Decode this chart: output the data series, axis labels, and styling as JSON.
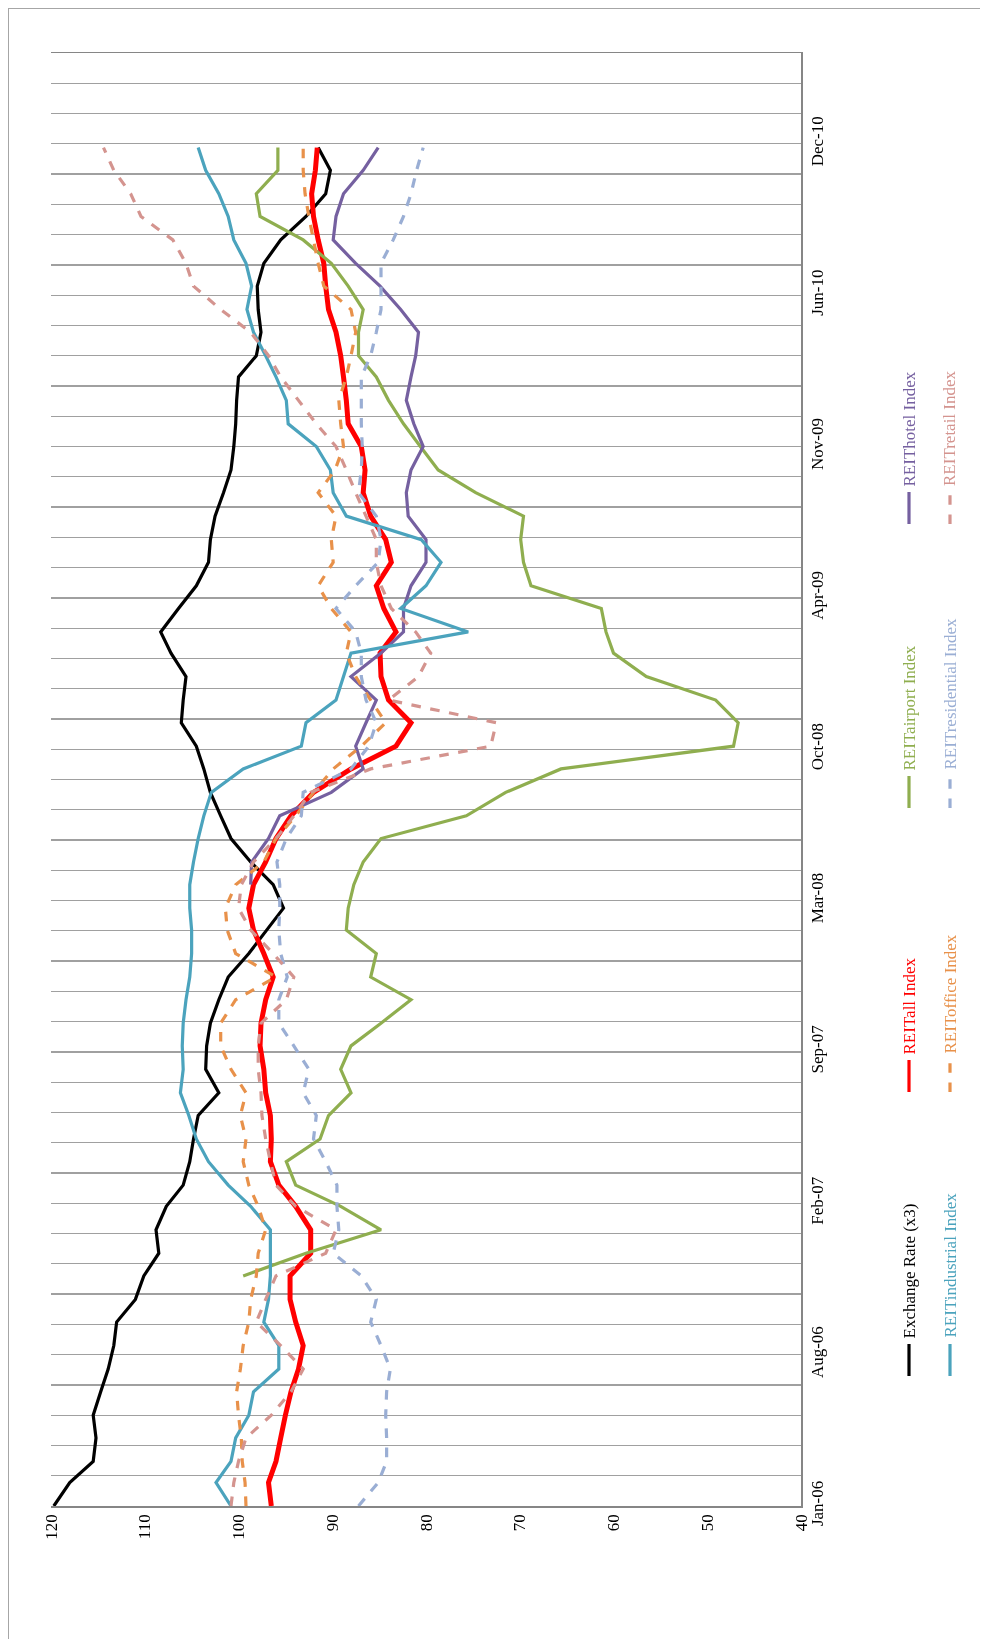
{
  "chart_data": {
    "type": "line",
    "x": [
      "2006-01-15",
      "2006-02-15",
      "2006-03-15",
      "2006-04-15",
      "2006-05-15",
      "2006-06-15",
      "2006-07-15",
      "2006-08-15",
      "2006-09-15",
      "2006-10-15",
      "2006-11-15",
      "2006-12-15",
      "2007-01-15",
      "2007-02-15",
      "2007-03-15",
      "2007-04-15",
      "2007-05-15",
      "2007-06-15",
      "2007-07-15",
      "2007-08-15",
      "2007-09-15",
      "2007-10-15",
      "2007-11-15",
      "2007-12-15",
      "2008-01-15",
      "2008-02-15",
      "2008-03-15",
      "2008-04-15",
      "2008-05-15",
      "2008-06-15",
      "2008-07-15",
      "2008-08-15",
      "2008-09-15",
      "2008-10-15",
      "2008-11-15",
      "2008-12-15",
      "2009-01-15",
      "2009-02-15",
      "2009-03-15",
      "2009-04-15",
      "2009-05-15",
      "2009-06-15",
      "2009-07-15",
      "2009-08-15",
      "2009-09-15",
      "2009-10-15",
      "2009-11-15",
      "2009-12-15",
      "2010-01-15",
      "2010-02-15",
      "2010-03-15",
      "2010-04-15",
      "2010-05-15",
      "2010-06-15",
      "2010-07-15",
      "2010-08-15",
      "2010-09-15",
      "2010-10-15",
      "2010-11-15",
      "2010-12-15"
    ],
    "series": [
      {
        "name": "Exchange Rate (x3)",
        "color": "#000000",
        "line_style": "solid",
        "values": [
          119.7,
          118,
          115.5,
          115.2,
          115.5,
          114.7,
          113.9,
          113.3,
          113,
          111,
          110.1,
          108.5,
          108.8,
          107.7,
          105.9,
          105.2,
          104.8,
          104.3,
          102.1,
          103.5,
          103.4,
          103,
          102.1,
          101.1,
          98.9,
          97,
          95.2,
          96.3,
          98.7,
          100.8,
          101.9,
          103,
          103.7,
          104.5,
          106.1,
          105.9,
          105.6,
          107.2,
          108.3,
          106.4,
          104.5,
          103.2,
          103,
          102.5,
          101.6,
          100.8,
          100.5,
          100.3,
          100.2,
          100,
          98.1,
          97.6,
          97.9,
          98,
          97.3,
          95.5,
          92.8,
          90.7,
          90.2,
          91.5
        ]
      },
      {
        "name": "REITall Index",
        "color": "#ff0000",
        "line_style": "solid",
        "values": [
          96.5,
          96.8,
          96,
          95.5,
          95,
          94.4,
          93.6,
          93.1,
          93.9,
          94.5,
          94.5,
          92.3,
          92.3,
          93.9,
          95.7,
          96.6,
          96.5,
          96.6,
          97.1,
          97.3,
          97.7,
          97.6,
          97.1,
          96.3,
          97.3,
          98.4,
          98.9,
          98.4,
          97.1,
          96,
          94.4,
          92,
          88,
          83.2,
          81.6,
          84,
          84.8,
          84.9,
          83.2,
          84.5,
          85.3,
          83.7,
          84.3,
          85.9,
          86.7,
          86.5,
          86.9,
          88.3,
          88.5,
          88.8,
          89.1,
          89.6,
          90.4,
          90.7,
          90.9,
          91.5,
          92,
          92.2,
          91.8,
          91.6
        ]
      },
      {
        "name": "REITairport Index",
        "color": "#8fae4f",
        "line_style": "solid",
        "values": [
          null,
          null,
          null,
          null,
          null,
          null,
          null,
          null,
          null,
          null,
          99.5,
          92.8,
          84.8,
          89.1,
          93.9,
          94.9,
          91.3,
          90.4,
          88,
          89.1,
          88,
          84.8,
          81.6,
          85.9,
          85.3,
          88.5,
          88.3,
          87.7,
          86.7,
          84.8,
          75.7,
          71.5,
          65.6,
          47.2,
          46.7,
          49.1,
          56.5,
          60,
          60.8,
          61.3,
          68.8,
          69.6,
          69.9,
          69.6,
          74.7,
          78.7,
          80.6,
          82.4,
          84,
          85.3,
          87.2,
          87.2,
          86.7,
          88.3,
          90.1,
          93.1,
          97.7,
          98.1,
          95.8,
          95.8
        ]
      },
      {
        "name": "REIThotel Index",
        "color": "#7560a0",
        "line_style": "solid",
        "values": [
          null,
          null,
          null,
          null,
          null,
          null,
          null,
          null,
          null,
          null,
          null,
          null,
          null,
          null,
          null,
          null,
          null,
          null,
          null,
          null,
          null,
          null,
          null,
          null,
          null,
          null,
          null,
          98.7,
          98.6,
          96.8,
          95.6,
          90.1,
          86.7,
          87.5,
          86.4,
          85.3,
          88,
          84.8,
          82.4,
          82.4,
          81.6,
          80,
          80,
          81.9,
          82.1,
          81.6,
          80.3,
          81.3,
          82.1,
          81.6,
          81.1,
          80.8,
          82.7,
          84.9,
          87.5,
          89.9,
          89.6,
          88.8,
          86.7,
          85.1
        ]
      },
      {
        "name": "REITindustrial Index",
        "color": "#4ba3bd",
        "line_style": "solid",
        "values": [
          100.8,
          102.4,
          100.8,
          100.3,
          98.9,
          98.4,
          95.7,
          95.7,
          97.3,
          96.8,
          96.6,
          96.6,
          96.6,
          98.7,
          101.1,
          103.2,
          104.5,
          105.3,
          106.2,
          105.9,
          106,
          105.9,
          105.6,
          105.2,
          105,
          105,
          105.2,
          105.2,
          104.8,
          104.3,
          103.7,
          102.9,
          99.5,
          93.3,
          92.8,
          89.6,
          88.8,
          88,
          75.5,
          82.7,
          80,
          78.4,
          80.5,
          88.5,
          89.9,
          90.2,
          91.7,
          94.7,
          94.9,
          96,
          97.1,
          98.4,
          99.1,
          98.6,
          99.2,
          100.5,
          101.1,
          102.1,
          103.5,
          104.3
        ]
      },
      {
        "name": "REIToffice Index",
        "color": "#e8914a",
        "line_style": "dashed",
        "values": [
          99.2,
          99.3,
          99.6,
          99.7,
          100,
          100.2,
          99.8,
          99.5,
          98.9,
          98.7,
          98.1,
          97.9,
          97.1,
          97.9,
          98.9,
          99.5,
          99.2,
          99.8,
          99.2,
          100.8,
          101.9,
          101.9,
          100.3,
          96,
          100.3,
          101.2,
          101.4,
          100.3,
          97.3,
          96,
          93.9,
          92,
          89.9,
          86.9,
          84.3,
          85.9,
          87.5,
          88.5,
          88,
          90.1,
          91.5,
          89.9,
          90.1,
          89.6,
          91.5,
          89.7,
          88.8,
          89.1,
          89.3,
          88.5,
          88,
          87.5,
          88,
          90.9,
          91.5,
          92,
          92.5,
          92.9,
          93.1,
          93.1
        ]
      },
      {
        "name": "REITresidential Index",
        "color": "#9aaed4",
        "line_style": "dashed",
        "values": [
          87.2,
          85.1,
          84.2,
          84.2,
          84.3,
          84.2,
          83.8,
          84.8,
          85.9,
          85.3,
          86.9,
          89.9,
          89.3,
          89.5,
          89.5,
          90.7,
          92,
          91.7,
          93.1,
          92.5,
          94.1,
          95.7,
          95.7,
          94.8,
          95.5,
          95.7,
          95.6,
          95.6,
          95.9,
          94.9,
          93.3,
          93.1,
          88,
          86.1,
          85.3,
          86.4,
          86.9,
          86.9,
          87.5,
          89.6,
          87.5,
          85.1,
          84.8,
          85.3,
          87.2,
          86.9,
          86.8,
          86.9,
          86.9,
          86.9,
          85.9,
          85.3,
          84.8,
          84.8,
          84.8,
          83.5,
          82.4,
          81.6,
          81,
          80.3
        ]
      },
      {
        "name": "REITretail Index",
        "color": "#d4948f",
        "line_style": "dashed",
        "values": [
          100.8,
          100.5,
          100,
          99.2,
          96.5,
          94.4,
          93.1,
          95.5,
          98.1,
          97.1,
          96,
          90.7,
          89.6,
          93.9,
          96,
          96.6,
          97.1,
          97.5,
          97.6,
          97.9,
          97.9,
          97.6,
          94.9,
          94.1,
          96.3,
          98.7,
          100,
          99.7,
          98.4,
          96,
          94.1,
          92.3,
          85.9,
          73.1,
          72.5,
          84,
          80.8,
          79.5,
          81.1,
          83.7,
          84.8,
          85.3,
          85.3,
          86.4,
          87.5,
          88.5,
          89.6,
          91.7,
          93.6,
          95.5,
          96.8,
          98.7,
          101.9,
          104.8,
          105.6,
          107,
          110.4,
          111.5,
          113.3,
          114.4
        ]
      }
    ],
    "orientation": "horizontal",
    "ylim": [
      "2006-01-15",
      "2011-04-19"
    ],
    "yticks": [
      {
        "value": "2006-01-15",
        "label": "Jan-06"
      },
      {
        "value": "2006-02-24",
        "label": null
      },
      {
        "value": "2006-04-05",
        "label": null
      },
      {
        "value": "2006-05-15",
        "label": null
      },
      {
        "value": "2006-06-24",
        "label": null
      },
      {
        "value": "2006-08-03",
        "label": "Aug-06"
      },
      {
        "value": "2006-09-12",
        "label": null
      },
      {
        "value": "2006-10-22",
        "label": null
      },
      {
        "value": "2006-12-01",
        "label": null
      },
      {
        "value": "2007-01-10",
        "label": null
      },
      {
        "value": "2007-02-19",
        "label": "Feb-07"
      },
      {
        "value": "2007-03-31",
        "label": null
      },
      {
        "value": "2007-05-10",
        "label": null
      },
      {
        "value": "2007-06-19",
        "label": null
      },
      {
        "value": "2007-07-29",
        "label": null
      },
      {
        "value": "2007-09-07",
        "label": "Sep-07"
      },
      {
        "value": "2007-10-17",
        "label": null
      },
      {
        "value": "2007-11-26",
        "label": null
      },
      {
        "value": "2008-01-05",
        "label": null
      },
      {
        "value": "2008-02-14",
        "label": null
      },
      {
        "value": "2008-03-25",
        "label": "Mar-08"
      },
      {
        "value": "2008-05-04",
        "label": null
      },
      {
        "value": "2008-06-13",
        "label": null
      },
      {
        "value": "2008-07-23",
        "label": null
      },
      {
        "value": "2008-09-01",
        "label": null
      },
      {
        "value": "2008-10-11",
        "label": "Oct-08"
      },
      {
        "value": "2008-11-20",
        "label": null
      },
      {
        "value": "2008-12-30",
        "label": null
      },
      {
        "value": "2009-02-08",
        "label": null
      },
      {
        "value": "2009-03-20",
        "label": null
      },
      {
        "value": "2009-04-29",
        "label": "Apr-09"
      },
      {
        "value": "2009-06-08",
        "label": null
      },
      {
        "value": "2009-07-18",
        "label": null
      },
      {
        "value": "2009-08-27",
        "label": null
      },
      {
        "value": "2009-10-06",
        "label": null
      },
      {
        "value": "2009-11-15",
        "label": "Nov-09"
      },
      {
        "value": "2009-12-25",
        "label": null
      },
      {
        "value": "2010-02-03",
        "label": null
      },
      {
        "value": "2010-03-15",
        "label": null
      },
      {
        "value": "2010-04-24",
        "label": null
      },
      {
        "value": "2010-06-03",
        "label": "Jun-10"
      },
      {
        "value": "2010-07-13",
        "label": null
      },
      {
        "value": "2010-08-22",
        "label": null
      },
      {
        "value": "2010-10-01",
        "label": null
      },
      {
        "value": "2010-11-10",
        "label": null
      },
      {
        "value": "2010-12-20",
        "label": "Dec-10"
      },
      {
        "value": "2011-01-29",
        "label": null
      },
      {
        "value": "2011-03-10",
        "label": null
      },
      {
        "value": "2011-04-19",
        "label": null
      }
    ],
    "xlim": [
      120,
      40
    ],
    "xticks": [
      40,
      50,
      60,
      70,
      80,
      90,
      100,
      110,
      120
    ],
    "grid": "y",
    "legend": "right",
    "marker": "none"
  }
}
